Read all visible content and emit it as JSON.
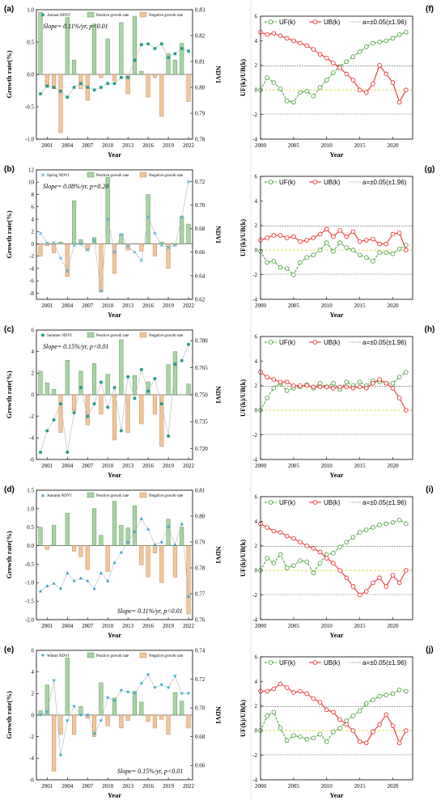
{
  "years": [
    2000,
    2001,
    2002,
    2003,
    2004,
    2005,
    2006,
    2007,
    2008,
    2009,
    2010,
    2011,
    2012,
    2013,
    2014,
    2015,
    2016,
    2017,
    2018,
    2019,
    2020,
    2021,
    2022
  ],
  "colors": {
    "pos_fill": "#a9d3a4",
    "pos_stroke": "#3f8a3f",
    "neg_fill": "#f2c59b",
    "neg_stroke": "#b07a40",
    "ndvi_line": "#b5b5b5",
    "uf": "#3a9a2a",
    "ub": "#ee1c1c",
    "crit": "#999999",
    "zero": "#e3d84a"
  },
  "left_panels": [
    {
      "label": "(a)",
      "ylabel": "Growth rate(%)",
      "y2label": "NDVI",
      "xlabel": "Year",
      "ylim": [
        -1.0,
        1.0
      ],
      "yticks": [
        "-1.0",
        "-0.5",
        "0.0",
        "0.5",
        "1.0"
      ],
      "y2lim": [
        0.78,
        0.83
      ],
      "y2ticks": [
        "0.78",
        "0.79",
        "0.80",
        "0.81",
        "0.82",
        "0.83"
      ],
      "legend": {
        "ndvi": "Annual NDVI",
        "pos": "Positive growth rate",
        "neg": "Negative growth rate"
      },
      "ndvi_marker": "square",
      "slope": "Slope= 0.11%/yr, p<0.01",
      "slope_pos": "top",
      "growth": [
        0.96,
        -0.2,
        -0.22,
        -0.9,
        0.88,
        0.22,
        -0.22,
        -0.4,
        0.78,
        -0.05,
        0.55,
        -0.1,
        0.8,
        -0.3,
        0.9,
        0.05,
        -0.35,
        -0.05,
        -0.65,
        0.32,
        0.22,
        0.48,
        -0.42
      ],
      "ndvi": [
        0.7975,
        0.8005,
        0.8,
        0.7985,
        0.7962,
        0.8,
        0.8015,
        0.8,
        0.799,
        0.8,
        0.8015,
        0.8015,
        0.8038,
        0.8038,
        0.8105,
        0.8165,
        0.8168,
        0.815,
        0.8168,
        0.8115,
        0.813,
        0.815,
        0.814
      ]
    },
    {
      "label": "(b)",
      "ylabel": "Growth rate(%)",
      "y2label": "NDVI",
      "xlabel": "Year",
      "ylim": [
        -9,
        12
      ],
      "yticks": [
        "-8",
        "-6",
        "-4",
        "-2",
        "0",
        "2",
        "4",
        "6",
        "8",
        "10",
        "12"
      ],
      "y2lim": [
        0.62,
        0.73
      ],
      "y2ticks": [
        "0.62",
        "0.64",
        "0.66",
        "0.68",
        "0.70",
        "0.72"
      ],
      "legend": {
        "ndvi": "Spring NDVI",
        "pos": "Positive growth rate",
        "neg": "Negative growth rate"
      },
      "ndvi_marker": "x",
      "slope": "Slope= 0.08%/yr, p=0.20",
      "slope_pos": "top",
      "growth": [
        -2.0,
        -0.3,
        -1.5,
        0.3,
        -5.3,
        7.0,
        0.7,
        -1.0,
        1.0,
        -7.8,
        10.8,
        -4.8,
        1.6,
        -1.0,
        0.0,
        -1.2,
        8.0,
        -2.0,
        0.3,
        -4.0,
        -0.2,
        4.4,
        3.2
      ],
      "ndvi": [
        0.676,
        0.668,
        0.668,
        0.655,
        0.644,
        0.666,
        0.667,
        0.662,
        0.67,
        0.627,
        0.688,
        0.66,
        0.675,
        0.665,
        0.66,
        0.653,
        0.69,
        0.676,
        0.666,
        0.664,
        0.666,
        0.69,
        0.72
      ]
    },
    {
      "label": "(c)",
      "ylabel": "Growth rate(%)",
      "y2label": "NDVI",
      "xlabel": "Year",
      "ylim": [
        -6,
        6
      ],
      "yticks": [
        "-6",
        "-4",
        "-2",
        "0",
        "2",
        "4",
        "6"
      ],
      "y2lim": [
        0.714,
        0.786
      ],
      "y2ticks": [
        "0.720",
        "0.735",
        "0.750",
        "0.765",
        "0.780"
      ],
      "legend": {
        "ndvi": "Summer NDVI",
        "pos": "Positive growth rate",
        "neg": "Negative growth rate"
      },
      "ndvi_marker": "circle",
      "slope": "Slope= 0.15%/yr, p<0.01",
      "slope_pos": "top",
      "growth": [
        2.2,
        1.1,
        0.5,
        -3.5,
        3.2,
        -1.5,
        2.2,
        -2.8,
        2.9,
        -1.8,
        1.9,
        -4.2,
        5.1,
        -3.5,
        1.8,
        -2.7,
        1.2,
        -1.8,
        -4.8,
        2.8,
        4.0,
        0,
        1.0
      ],
      "ndvi": [
        0.718,
        0.73,
        0.736,
        0.745,
        0.718,
        0.74,
        0.754,
        0.738,
        0.745,
        0.757,
        0.743,
        0.754,
        0.73,
        0.76,
        0.748,
        0.764,
        0.752,
        0.759,
        0.745,
        0.727,
        0.767,
        0.769,
        0.778
      ]
    },
    {
      "label": "(d)",
      "ylabel": "Growth rate(%)",
      "y2label": "NDVI",
      "xlabel": "Year",
      "ylim": [
        -2.0,
        1.5
      ],
      "yticks": [
        "-2.0",
        "-1.5",
        "-1.0",
        "-0.5",
        "0.0",
        "0.5",
        "1.0",
        "1.5"
      ],
      "y2lim": [
        0.76,
        0.81
      ],
      "y2ticks": [
        "0.76",
        "0.77",
        "0.78",
        "0.79",
        "0.80",
        "0.81"
      ],
      "legend": {
        "ndvi": "Autumn NDVI",
        "pos": "Positive growth rate",
        "neg": "Negative growth rate"
      },
      "ndvi_marker": "triangle",
      "slope": "Slope= 0.11%/yr, p<0.01",
      "slope_pos": "bottom",
      "growth": [
        0.5,
        -0.1,
        0.55,
        0.0,
        0.88,
        -0.15,
        -0.3,
        -0.65,
        1.0,
        0.28,
        -0.7,
        1.2,
        0.55,
        0.48,
        1.08,
        -0.52,
        -0.85,
        -0.2,
        -1.0,
        0.72,
        -0.85,
        0.5,
        -1.85
      ],
      "ndvi": [
        0.771,
        0.773,
        0.774,
        0.772,
        0.778,
        0.775,
        0.776,
        0.775,
        0.772,
        0.778,
        0.775,
        0.782,
        0.786,
        0.79,
        0.794,
        0.799,
        0.795,
        0.789,
        0.79,
        0.796,
        0.789,
        0.797,
        0.769
      ]
    },
    {
      "label": "(e)",
      "ylabel": "Growth rate(%)",
      "y2label": "NDVI",
      "xlabel": "Year",
      "ylim": [
        -6,
        6
      ],
      "yticks": [
        "-6",
        "-4",
        "-2",
        "0",
        "2",
        "4",
        "6"
      ],
      "y2lim": [
        0.65,
        0.74
      ],
      "y2ticks": [
        "0.66",
        "0.68",
        "0.70",
        "0.72",
        "0.74"
      ],
      "legend": {
        "ndvi": "Winter NDVI",
        "pos": "Positive growth rate",
        "neg": "Negative growth rate"
      },
      "ndvi_marker": "triangle-down",
      "slope": "Slope= 0.15%/yr, p<0.01",
      "slope_pos": "bottom",
      "growth": [
        0.4,
        2.8,
        -5.2,
        -1.8,
        5.3,
        -1.8,
        0.8,
        -0.3,
        -2.0,
        3.0,
        -1.0,
        1.6,
        -1.2,
        -0.5,
        2.2,
        1.2,
        -0.6,
        -1.2,
        -0.4,
        -1.8,
        2.1,
        1.3,
        -1.2
      ],
      "ndvi": [
        0.695,
        0.697,
        0.719,
        0.667,
        0.691,
        0.701,
        0.695,
        0.695,
        0.682,
        0.691,
        0.707,
        0.705,
        0.712,
        0.711,
        0.71,
        0.717,
        0.723,
        0.714,
        0.716,
        0.714,
        0.722,
        0.71,
        0.71
      ]
    }
  ],
  "right_panels": [
    {
      "label": "(f)",
      "ylabel": "UF(k)/UB(k)",
      "xlabel": "Year",
      "ylim": [
        -4,
        6
      ],
      "yticks": [
        "-4",
        "-2",
        "0",
        "2",
        "4",
        "6"
      ],
      "xticks": [
        "2000",
        "2005",
        "2010",
        "2015",
        "2020"
      ],
      "crit": 1.96,
      "legend": {
        "uf": "UF(k)",
        "ub": "UB(k)",
        "crit": "a=±0.05(±1.96)"
      },
      "uf": [
        0.0,
        1.0,
        0.6,
        0.1,
        -0.9,
        -1.0,
        -0.2,
        -0.1,
        -0.5,
        0.2,
        0.8,
        1.4,
        1.9,
        2.3,
        2.7,
        3.1,
        3.5,
        3.8,
        3.9,
        4.0,
        4.2,
        4.5,
        4.7
      ],
      "ub": [
        4.7,
        4.5,
        4.6,
        4.4,
        4.2,
        4.0,
        3.8,
        3.6,
        3.3,
        2.9,
        2.6,
        2.2,
        1.8,
        1.3,
        0.8,
        0.0,
        -0.2,
        0.5,
        2.0,
        1.3,
        0.6,
        -1.0,
        0.0
      ]
    },
    {
      "label": "(g)",
      "ylabel": "UF(k)/UB(k)",
      "xlabel": "Year",
      "ylim": [
        -4,
        6
      ],
      "yticks": [
        "-4",
        "-2",
        "0",
        "2",
        "4",
        "6"
      ],
      "xticks": [
        "2000",
        "2005",
        "2010",
        "2015",
        "2020"
      ],
      "crit": 1.96,
      "legend": {
        "uf": "UF(k)",
        "ub": "UB(k)",
        "crit": "a=±0.05(±1.96)"
      },
      "uf": [
        -0.1,
        -1.0,
        -0.9,
        -1.4,
        -1.5,
        -2.0,
        -1.0,
        -0.6,
        -0.4,
        0.0,
        0.6,
        -0.1,
        0.6,
        0.2,
        0.0,
        -0.4,
        -0.6,
        -0.9,
        -0.2,
        -0.2,
        -0.3,
        0.1,
        0.4
      ],
      "ub": [
        0.8,
        1.0,
        1.2,
        1.2,
        1.0,
        1.1,
        0.7,
        0.8,
        1.0,
        1.3,
        1.7,
        1.1,
        1.6,
        1.1,
        1.5,
        0.7,
        0.8,
        0.9,
        0.5,
        0.5,
        1.3,
        1.4,
        0.0
      ]
    },
    {
      "label": "(h)",
      "ylabel": "UF(k)/UB(k)",
      "xlabel": "Year",
      "ylim": [
        -4,
        6
      ],
      "yticks": [
        "-4",
        "-2",
        "0",
        "2",
        "4",
        "6"
      ],
      "xticks": [
        "2000",
        "2005",
        "2010",
        "2015",
        "2020"
      ],
      "crit": 1.96,
      "legend": {
        "uf": "UF(k)",
        "ub": "UB(k)",
        "crit": "a=±0.05(±1.96)"
      },
      "uf": [
        0.0,
        1.0,
        1.8,
        2.2,
        1.6,
        1.8,
        1.9,
        2.1,
        1.8,
        2.2,
        1.9,
        2.2,
        1.7,
        2.3,
        2.0,
        2.3,
        2.0,
        2.4,
        2.3,
        2.2,
        2.2,
        2.7,
        3.1
      ],
      "ub": [
        3.1,
        2.7,
        2.5,
        2.3,
        2.3,
        2.0,
        2.0,
        2.0,
        1.9,
        1.9,
        1.9,
        1.8,
        1.9,
        1.9,
        1.8,
        1.9,
        1.8,
        2.2,
        2.5,
        2.2,
        1.8,
        1.0,
        0.0
      ]
    },
    {
      "label": "(i)",
      "ylabel": "UF(k)/UB(k)",
      "xlabel": "Year",
      "ylim": [
        -4,
        6
      ],
      "yticks": [
        "-4",
        "-2",
        "0",
        "2",
        "4",
        "6"
      ],
      "xticks": [
        "2000",
        "2005",
        "2010",
        "2015",
        "2020"
      ],
      "crit": 1.96,
      "legend": {
        "uf": "UF(k)",
        "ub": "UB(k)",
        "crit": "a=±0.05(±1.96)"
      },
      "uf": [
        0.0,
        1.0,
        0.6,
        1.3,
        0.2,
        0.4,
        0.8,
        0.7,
        -0.2,
        0.6,
        1.3,
        1.4,
        1.9,
        2.3,
        2.7,
        3.1,
        3.3,
        3.5,
        3.7,
        3.8,
        3.9,
        4.1,
        3.8
      ],
      "ub": [
        3.8,
        3.5,
        3.2,
        3.1,
        2.8,
        2.6,
        2.3,
        2.0,
        1.8,
        1.5,
        1.0,
        0.6,
        0.0,
        -0.6,
        -1.3,
        -2.0,
        -1.7,
        -1.0,
        -0.6,
        -1.3,
        -0.4,
        -1.0,
        0.0
      ]
    },
    {
      "label": "(j)",
      "ylabel": "UF(k)/UB(k)",
      "xlabel": "Year",
      "ylim": [
        -4,
        6
      ],
      "yticks": [
        "-4",
        "-2",
        "0",
        "2",
        "4",
        "6"
      ],
      "xticks": [
        "2000",
        "2005",
        "2010",
        "2015",
        "2020"
      ],
      "crit": 1.96,
      "legend": {
        "uf": "UF(k)",
        "ub": "UB(k)",
        "crit": "a=±0.05(±1.96)"
      },
      "uf": [
        0.0,
        1.2,
        1.5,
        0.2,
        -0.8,
        -0.4,
        -0.5,
        -0.7,
        -0.6,
        -0.3,
        -0.9,
        -0.1,
        0.2,
        0.8,
        1.2,
        1.6,
        2.2,
        2.5,
        2.8,
        2.9,
        3.0,
        3.3,
        3.2
      ],
      "ub": [
        3.2,
        3.2,
        3.4,
        3.8,
        3.5,
        3.1,
        3.2,
        3.0,
        2.6,
        2.3,
        1.7,
        1.5,
        0.9,
        0.5,
        0.0,
        -0.9,
        -1.0,
        -0.1,
        0.5,
        1.3,
        0.4,
        -1.0,
        0.0
      ]
    }
  ]
}
